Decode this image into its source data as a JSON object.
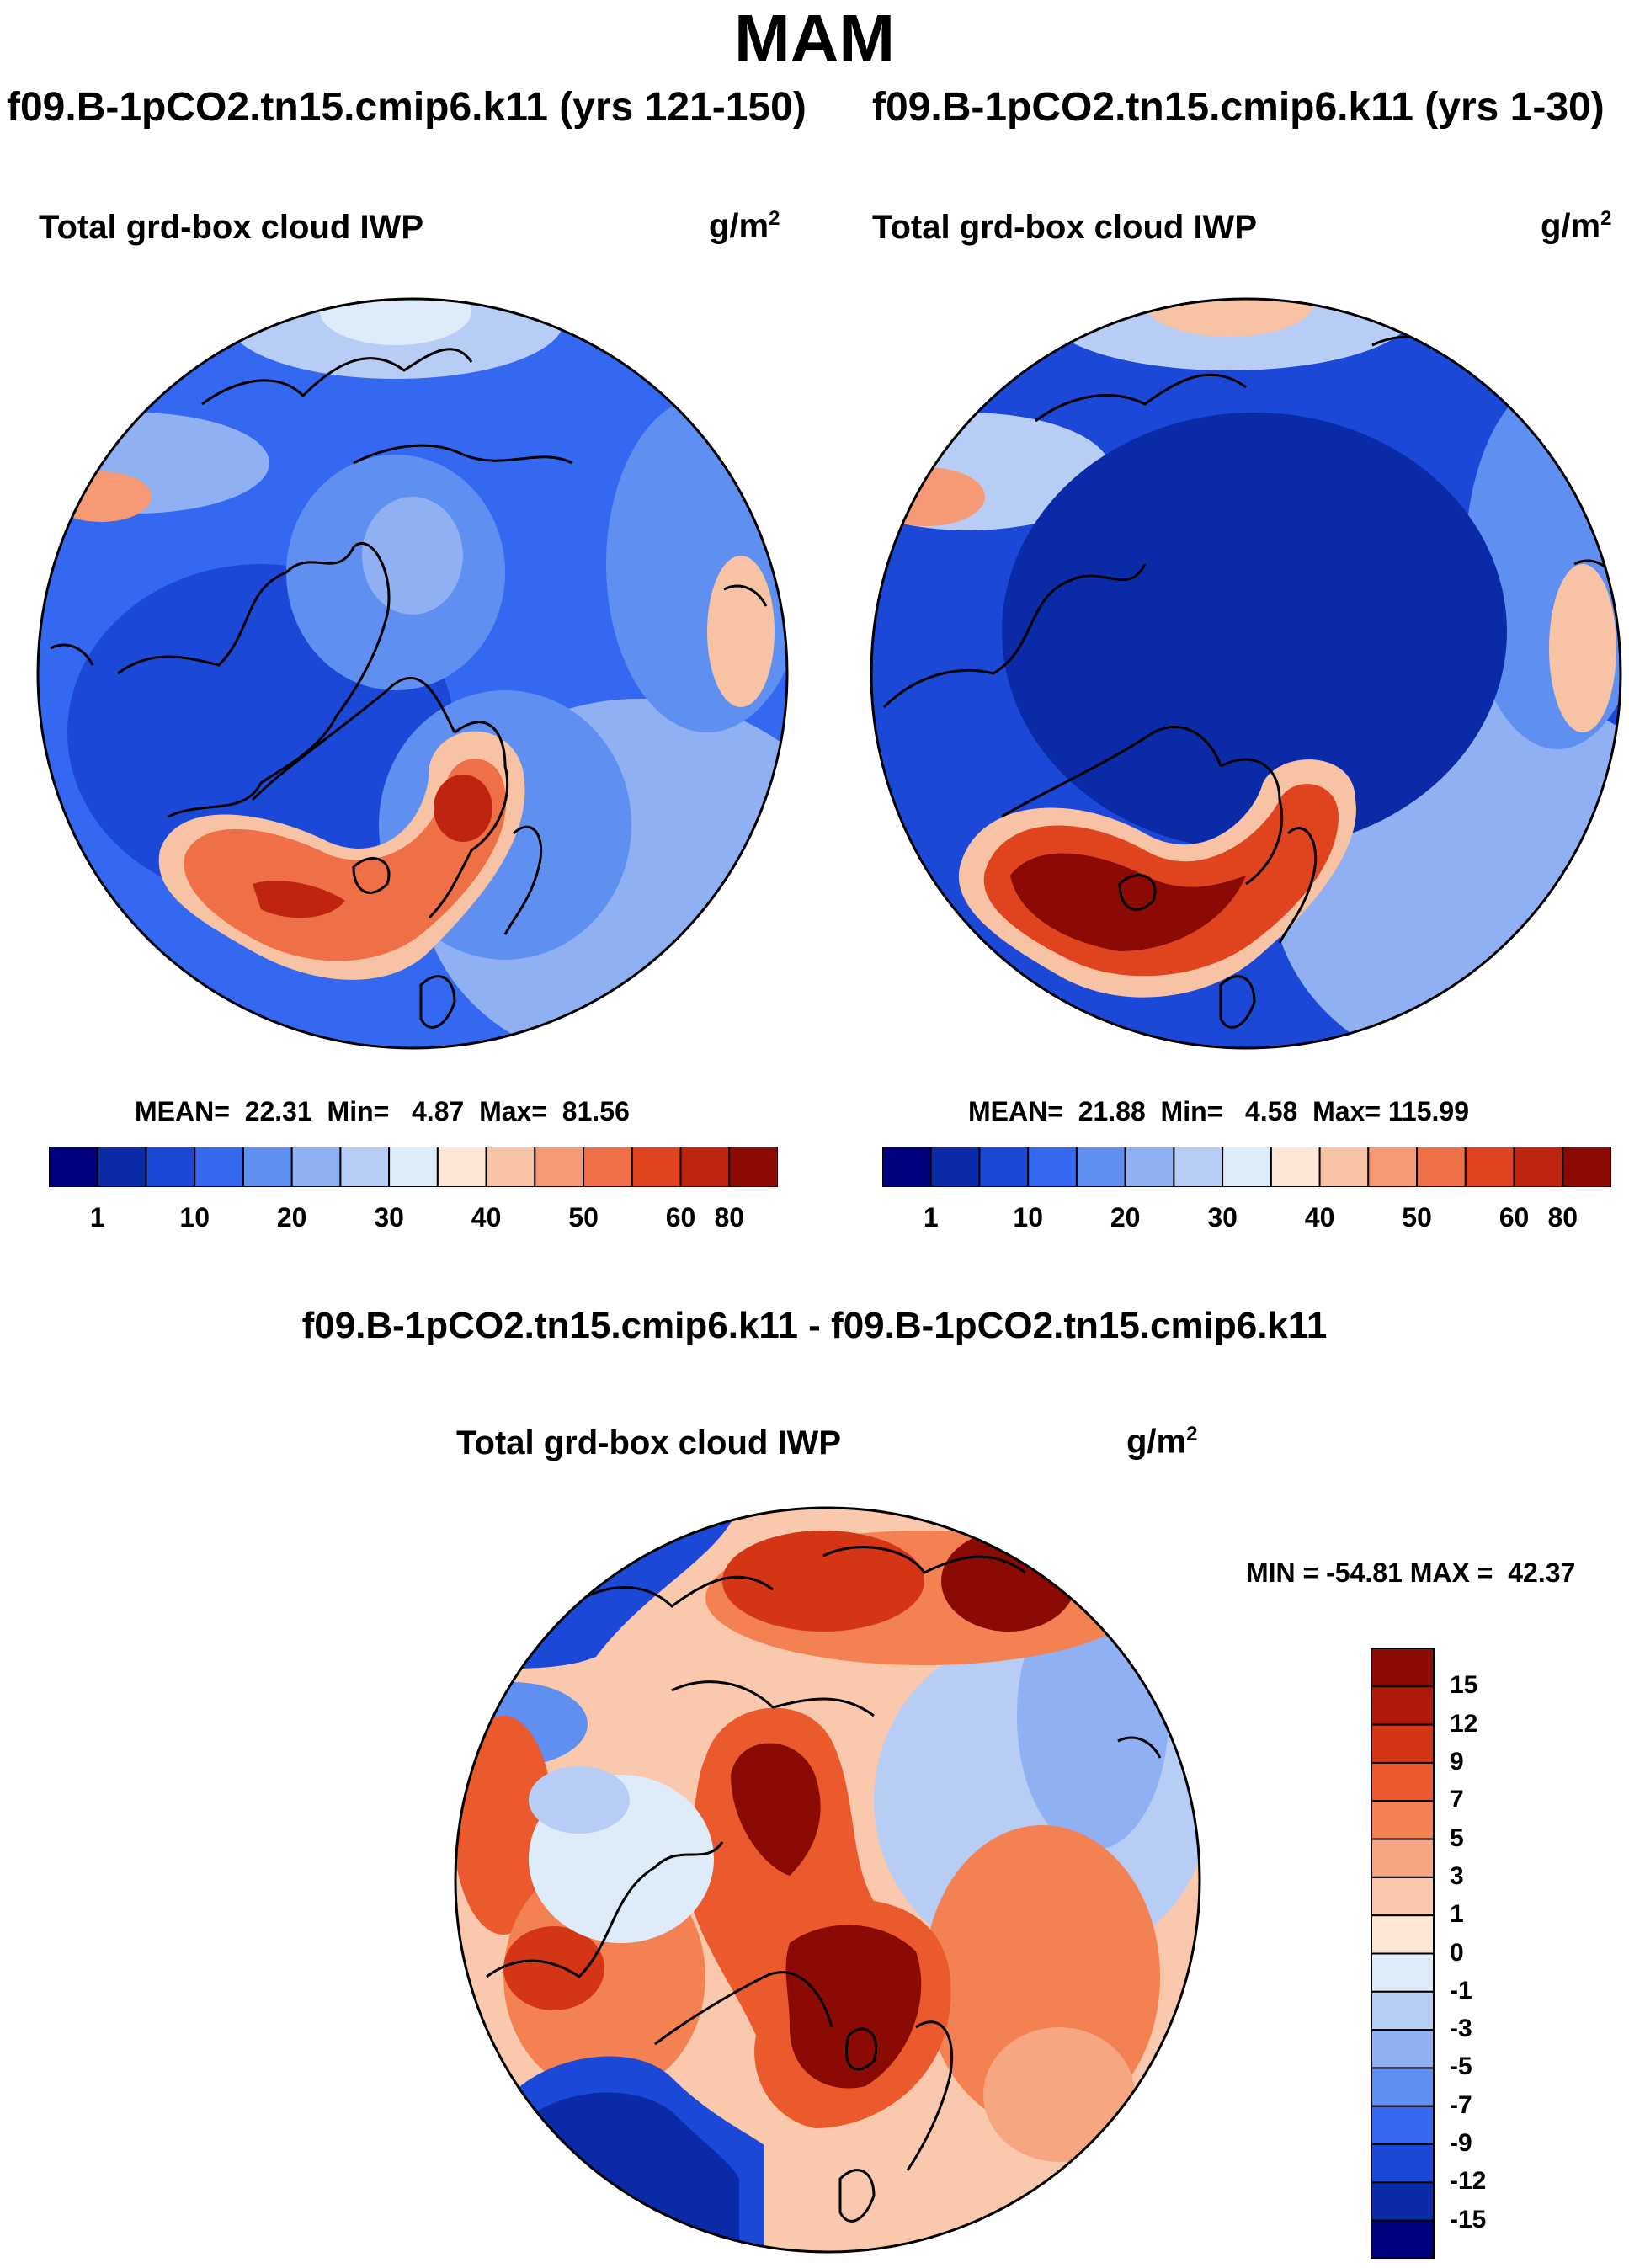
{
  "title": "MAM",
  "panel_left": {
    "case": "f09.B-1pCO2.tn15.cmip6.k11 (yrs 121-150)",
    "variable": "Total grd-box cloud IWP",
    "units_base": "g/m",
    "units_exp": "2",
    "stats": {
      "mean_label": "MEAN=",
      "mean": "22.31",
      "min_label": "Min=",
      "min": "4.87",
      "max_label": "Max=",
      "max": "81.56"
    }
  },
  "panel_right": {
    "case": "f09.B-1pCO2.tn15.cmip6.k11 (yrs 1-30)",
    "variable": "Total grd-box cloud IWP",
    "units_base": "g/m",
    "units_exp": "2",
    "stats": {
      "mean_label": "MEAN=",
      "mean": "21.88",
      "min_label": "Min=",
      "min": "4.58",
      "max_label": "Max=",
      "max": "115.99"
    }
  },
  "panel_diff": {
    "case": "f09.B-1pCO2.tn15.cmip6.k11 - f09.B-1pCO2.tn15.cmip6.k11",
    "variable": "Total grd-box cloud IWP",
    "units_base": "g/m",
    "units_exp": "2",
    "range_text": "MIN = -54.81 MAX =  42.37"
  },
  "colorbar_abs": {
    "ticks": [
      "1",
      "10",
      "20",
      "30",
      "40",
      "50",
      "60",
      "80"
    ],
    "colors": [
      "#00007f",
      "#0a2aa8",
      "#1c48d8",
      "#3568f0",
      "#5f8ff0",
      "#8fb0f2",
      "#b8cdf5",
      "#deebf9",
      "#fde6d6",
      "#f8c3a4",
      "#f59a75",
      "#ef6f46",
      "#e0441f",
      "#bf2410",
      "#8b0a04"
    ]
  },
  "colorbar_diff": {
    "ticks": [
      "15",
      "12",
      "9",
      "7",
      "5",
      "3",
      "1",
      "0",
      "-1",
      "-3",
      "-5",
      "-7",
      "-9",
      "-12",
      "-15"
    ],
    "colors": [
      "#8b0a04",
      "#b01a0c",
      "#d43514",
      "#ea5a2c",
      "#f48152",
      "#f6a680",
      "#f9c8ad",
      "#fde6d6",
      "#deebf9",
      "#b8cdf5",
      "#8fb0f2",
      "#5f8ff0",
      "#3568f0",
      "#1c48d8",
      "#0a2aa8",
      "#00007f"
    ]
  },
  "map_colors": {
    "ocean_blue": "#3568f0",
    "deep_blue": "#0a2aa8",
    "light_blue": "#8fb0f2",
    "pale_blue": "#deebf9",
    "pale_red": "#fde6d6",
    "mid_red": "#f48152",
    "strong_red": "#e0441f",
    "dark_red": "#8b0a04"
  }
}
